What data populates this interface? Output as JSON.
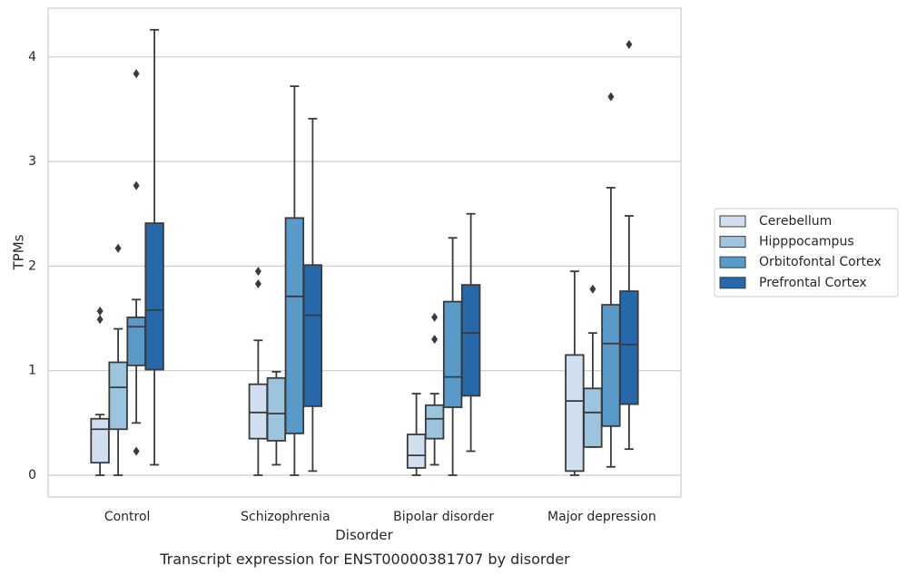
{
  "chart_data": {
    "type": "box",
    "xlabel": "Disorder",
    "ylabel": "TPMs",
    "caption": "Transcript expression for ENST00000381707 by disorder",
    "ylim": [
      -0.2,
      4.47
    ],
    "yticks": [
      0,
      1,
      2,
      3,
      4
    ],
    "grid": "horizontal",
    "legend_position": "right",
    "categories": [
      "Control",
      "Schizophrenia",
      "Bipolar disorder",
      "Major depression"
    ],
    "series": [
      {
        "name": "Cerebellum",
        "color": "#cfdff0",
        "boxes": [
          {
            "min": 0.0,
            "q1": 0.12,
            "median": 0.44,
            "q3": 0.54,
            "max": 0.58,
            "outliers": [
              1.49,
              1.57
            ]
          },
          {
            "min": 0.0,
            "q1": 0.35,
            "median": 0.6,
            "q3": 0.87,
            "max": 1.29,
            "outliers": [
              1.83,
              1.95
            ]
          },
          {
            "min": 0.0,
            "q1": 0.07,
            "median": 0.19,
            "q3": 0.39,
            "max": 0.78,
            "outliers": []
          },
          {
            "min": 0.0,
            "q1": 0.04,
            "median": 0.71,
            "q3": 1.15,
            "max": 1.95,
            "outliers": []
          }
        ]
      },
      {
        "name": "Hipppocampus",
        "color": "#9cc4dd",
        "boxes": [
          {
            "min": 0.0,
            "q1": 0.44,
            "median": 0.84,
            "q3": 1.08,
            "max": 1.4,
            "outliers": [
              2.17
            ]
          },
          {
            "min": 0.1,
            "q1": 0.33,
            "median": 0.59,
            "q3": 0.93,
            "max": 0.99,
            "outliers": []
          },
          {
            "min": 0.1,
            "q1": 0.35,
            "median": 0.54,
            "q3": 0.67,
            "max": 0.78,
            "outliers": [
              1.3,
              1.51
            ]
          },
          {
            "min": 0.27,
            "q1": 0.27,
            "median": 0.6,
            "q3": 0.83,
            "max": 1.36,
            "outliers": [
              1.78
            ]
          }
        ]
      },
      {
        "name": "Orbitofontal Cortex",
        "color": "#5a9ac9",
        "boxes": [
          {
            "min": 0.5,
            "q1": 1.05,
            "median": 1.42,
            "q3": 1.51,
            "max": 1.68,
            "outliers": [
              0.23,
              2.77,
              3.84
            ]
          },
          {
            "min": 0.0,
            "q1": 0.4,
            "median": 1.71,
            "q3": 2.46,
            "max": 3.72,
            "outliers": []
          },
          {
            "min": 0.0,
            "q1": 0.65,
            "median": 0.94,
            "q3": 1.66,
            "max": 2.27,
            "outliers": []
          },
          {
            "min": 0.08,
            "q1": 0.47,
            "median": 1.26,
            "q3": 1.63,
            "max": 2.75,
            "outliers": [
              3.62
            ]
          }
        ]
      },
      {
        "name": "Prefrontal Cortex",
        "color": "#2768aa",
        "boxes": [
          {
            "min": 0.1,
            "q1": 1.01,
            "median": 1.58,
            "q3": 2.41,
            "max": 4.26,
            "outliers": []
          },
          {
            "min": 0.04,
            "q1": 0.66,
            "median": 1.53,
            "q3": 2.01,
            "max": 3.41,
            "outliers": []
          },
          {
            "min": 0.23,
            "q1": 0.76,
            "median": 1.36,
            "q3": 1.82,
            "max": 2.5,
            "outliers": []
          },
          {
            "min": 0.25,
            "q1": 0.68,
            "median": 1.25,
            "q3": 1.76,
            "max": 2.48,
            "outliers": [
              4.12
            ]
          }
        ]
      }
    ]
  }
}
